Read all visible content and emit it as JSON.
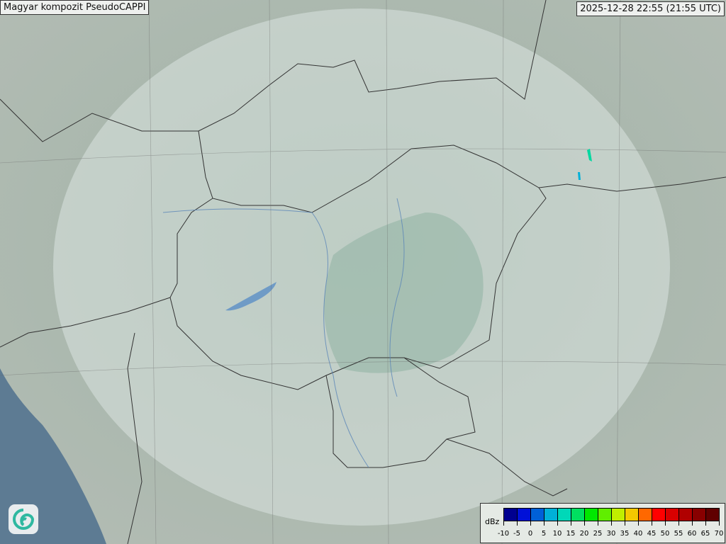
{
  "header": {
    "title": "Magyar kompozit  PseudoCAPPI",
    "timestamp": "2025-12-28 22:55 (21:55 UTC)"
  },
  "legend": {
    "unit": "dBz",
    "ticks": [
      "-10",
      "-5",
      "0",
      "5",
      "10",
      "15",
      "20",
      "25",
      "30",
      "35",
      "40",
      "45",
      "50",
      "55",
      "60",
      "65",
      "70"
    ],
    "colors": [
      "#000090",
      "#0010d8",
      "#0060d8",
      "#00b0d8",
      "#00d8b8",
      "#00e060",
      "#00e800",
      "#60ee00",
      "#c0ee00",
      "#f4c800",
      "#ff6800",
      "#ff0000",
      "#d80000",
      "#b00000",
      "#880000",
      "#600000"
    ]
  },
  "map": {
    "sea_color": "#5d7b93",
    "radar_coverage_color": "#dfe9e6",
    "echo_color": "#00d8a0"
  },
  "logo": {
    "icon": "swirl-logo-icon"
  }
}
